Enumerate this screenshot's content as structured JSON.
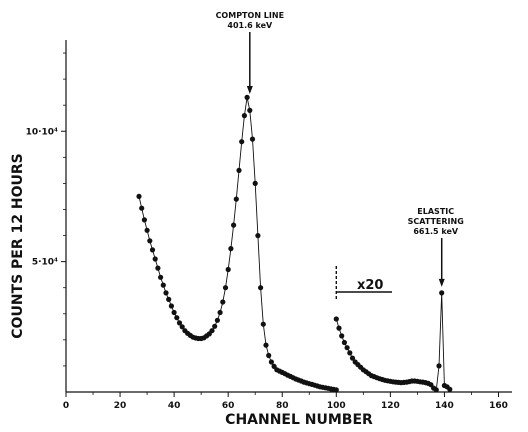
{
  "chart_data": {
    "type": "scatter",
    "xlabel": "CHANNEL NUMBER",
    "ylabel": "COUNTS PER 12 HOURS",
    "xlim": [
      0,
      165
    ],
    "ylim": [
      0,
      135000
    ],
    "x_ticks": [
      0,
      20,
      40,
      60,
      80,
      100,
      120,
      140,
      160
    ],
    "y_ticks": [
      {
        "value": 50000,
        "label": "5·10⁴"
      },
      {
        "value": 100000,
        "label": "10·10⁴"
      }
    ],
    "grid": false,
    "series": [
      {
        "segment": "low-channel",
        "x": [
          27,
          28,
          29,
          30,
          31,
          32,
          33,
          34,
          35,
          36,
          37,
          38,
          39,
          40,
          41,
          42,
          43,
          44,
          45,
          46,
          47,
          48,
          49,
          50,
          51,
          52,
          53,
          54,
          55,
          56,
          57,
          58,
          59,
          60,
          61,
          62,
          63,
          64,
          65,
          66,
          67,
          68,
          69,
          70,
          71,
          72,
          73,
          74,
          75,
          76,
          77,
          78,
          79,
          80,
          81,
          82,
          83,
          84,
          85,
          86,
          87,
          88,
          89,
          90,
          91,
          92,
          93,
          94,
          95,
          96,
          97,
          98,
          99,
          100
        ],
        "y": [
          75000,
          70500,
          66000,
          62000,
          58000,
          54500,
          51000,
          47500,
          44000,
          41000,
          38000,
          35500,
          33000,
          30500,
          28500,
          26500,
          25000,
          23500,
          22500,
          21700,
          21000,
          20700,
          20500,
          20500,
          20800,
          21500,
          22300,
          23500,
          25200,
          27500,
          30500,
          34500,
          40000,
          47000,
          55000,
          64000,
          74000,
          85000,
          96000,
          106000,
          113000,
          108000,
          97000,
          80000,
          60000,
          40000,
          26000,
          18000,
          14000,
          11500,
          9800,
          8500,
          8000,
          7500,
          7000,
          6500,
          6000,
          5500,
          5000,
          4600,
          4200,
          3800,
          3500,
          3200,
          2900,
          2600,
          2300,
          2000,
          1800,
          1600,
          1400,
          1200,
          1000,
          800
        ]
      },
      {
        "segment": "high-channel-x20",
        "x": [
          100,
          101,
          102,
          103,
          104,
          105,
          106,
          107,
          108,
          109,
          110,
          111,
          112,
          113,
          114,
          115,
          116,
          117,
          118,
          119,
          120,
          121,
          122,
          123,
          124,
          125,
          126,
          127,
          128,
          129,
          130,
          131,
          132,
          133,
          134,
          135,
          136,
          137,
          138,
          139,
          140,
          141,
          142
        ],
        "y": [
          28000,
          24500,
          21500,
          19000,
          17000,
          15000,
          13000,
          11500,
          10500,
          9500,
          8500,
          7800,
          7000,
          6300,
          5900,
          5500,
          5100,
          4800,
          4500,
          4300,
          4100,
          3900,
          3800,
          3700,
          3600,
          3700,
          3800,
          4000,
          4200,
          4200,
          4100,
          3900,
          3800,
          3600,
          3300,
          2800,
          1500,
          800,
          10000,
          38000,
          2500,
          2000,
          1000
        ]
      }
    ],
    "annotations": [
      {
        "text": "COMPTON LINE",
        "text2": "401.6 keV",
        "x": 68,
        "y": 112000
      },
      {
        "text": "ELASTIC",
        "text2": "SCATTERING",
        "text3": "661.5 keV",
        "x": 139,
        "y": 38000
      },
      {
        "text": "x20",
        "x": 100
      }
    ]
  }
}
